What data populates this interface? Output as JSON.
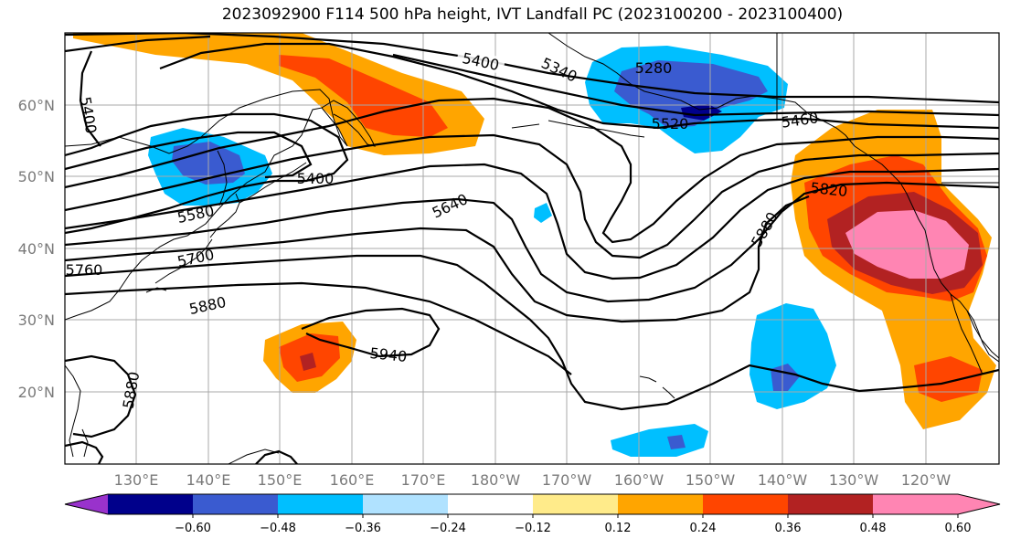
{
  "title": "2023092900 F114 500 hPa height, IVT Landfall PC (2023100200 - 2023100400)",
  "lat_labels": [
    "60°N",
    "50°N",
    "40°N",
    "30°N",
    "20°N"
  ],
  "lon_labels": [
    "130°E",
    "140°E",
    "150°E",
    "160°E",
    "170°E",
    "180°W",
    "170°W",
    "160°W",
    "150°W",
    "140°W",
    "130°W",
    "120°W"
  ],
  "contour_labels": [
    "5400",
    "5340",
    "5280",
    "5520",
    "5460",
    "5400",
    "5400",
    "5580",
    "5640",
    "5820",
    "5880",
    "5700",
    "5760",
    "5880",
    "5940",
    "5880"
  ],
  "colorbar": {
    "ticks": [
      "−0.60",
      "−0.48",
      "−0.36",
      "−0.24",
      "−0.12",
      "0.12",
      "0.24",
      "0.36",
      "0.48",
      "0.60"
    ],
    "colors": [
      "#9932cc",
      "#00008b",
      "#3a5bd0",
      "#00bfff",
      "#b0e2ff",
      "#ffffff",
      "#ffeb8a",
      "#ffa500",
      "#ff4500",
      "#b22222",
      "#ff85b3",
      "#ff85b3"
    ]
  },
  "palette": {
    "neg1": "#b0e2ff",
    "neg2": "#00bfff",
    "neg3": "#3a5bd0",
    "neg4": "#00008b",
    "pos1": "#ffeb8a",
    "pos2": "#ffa500",
    "pos3": "#ff4500",
    "pos4": "#b22222",
    "pos5": "#ff85b3"
  }
}
